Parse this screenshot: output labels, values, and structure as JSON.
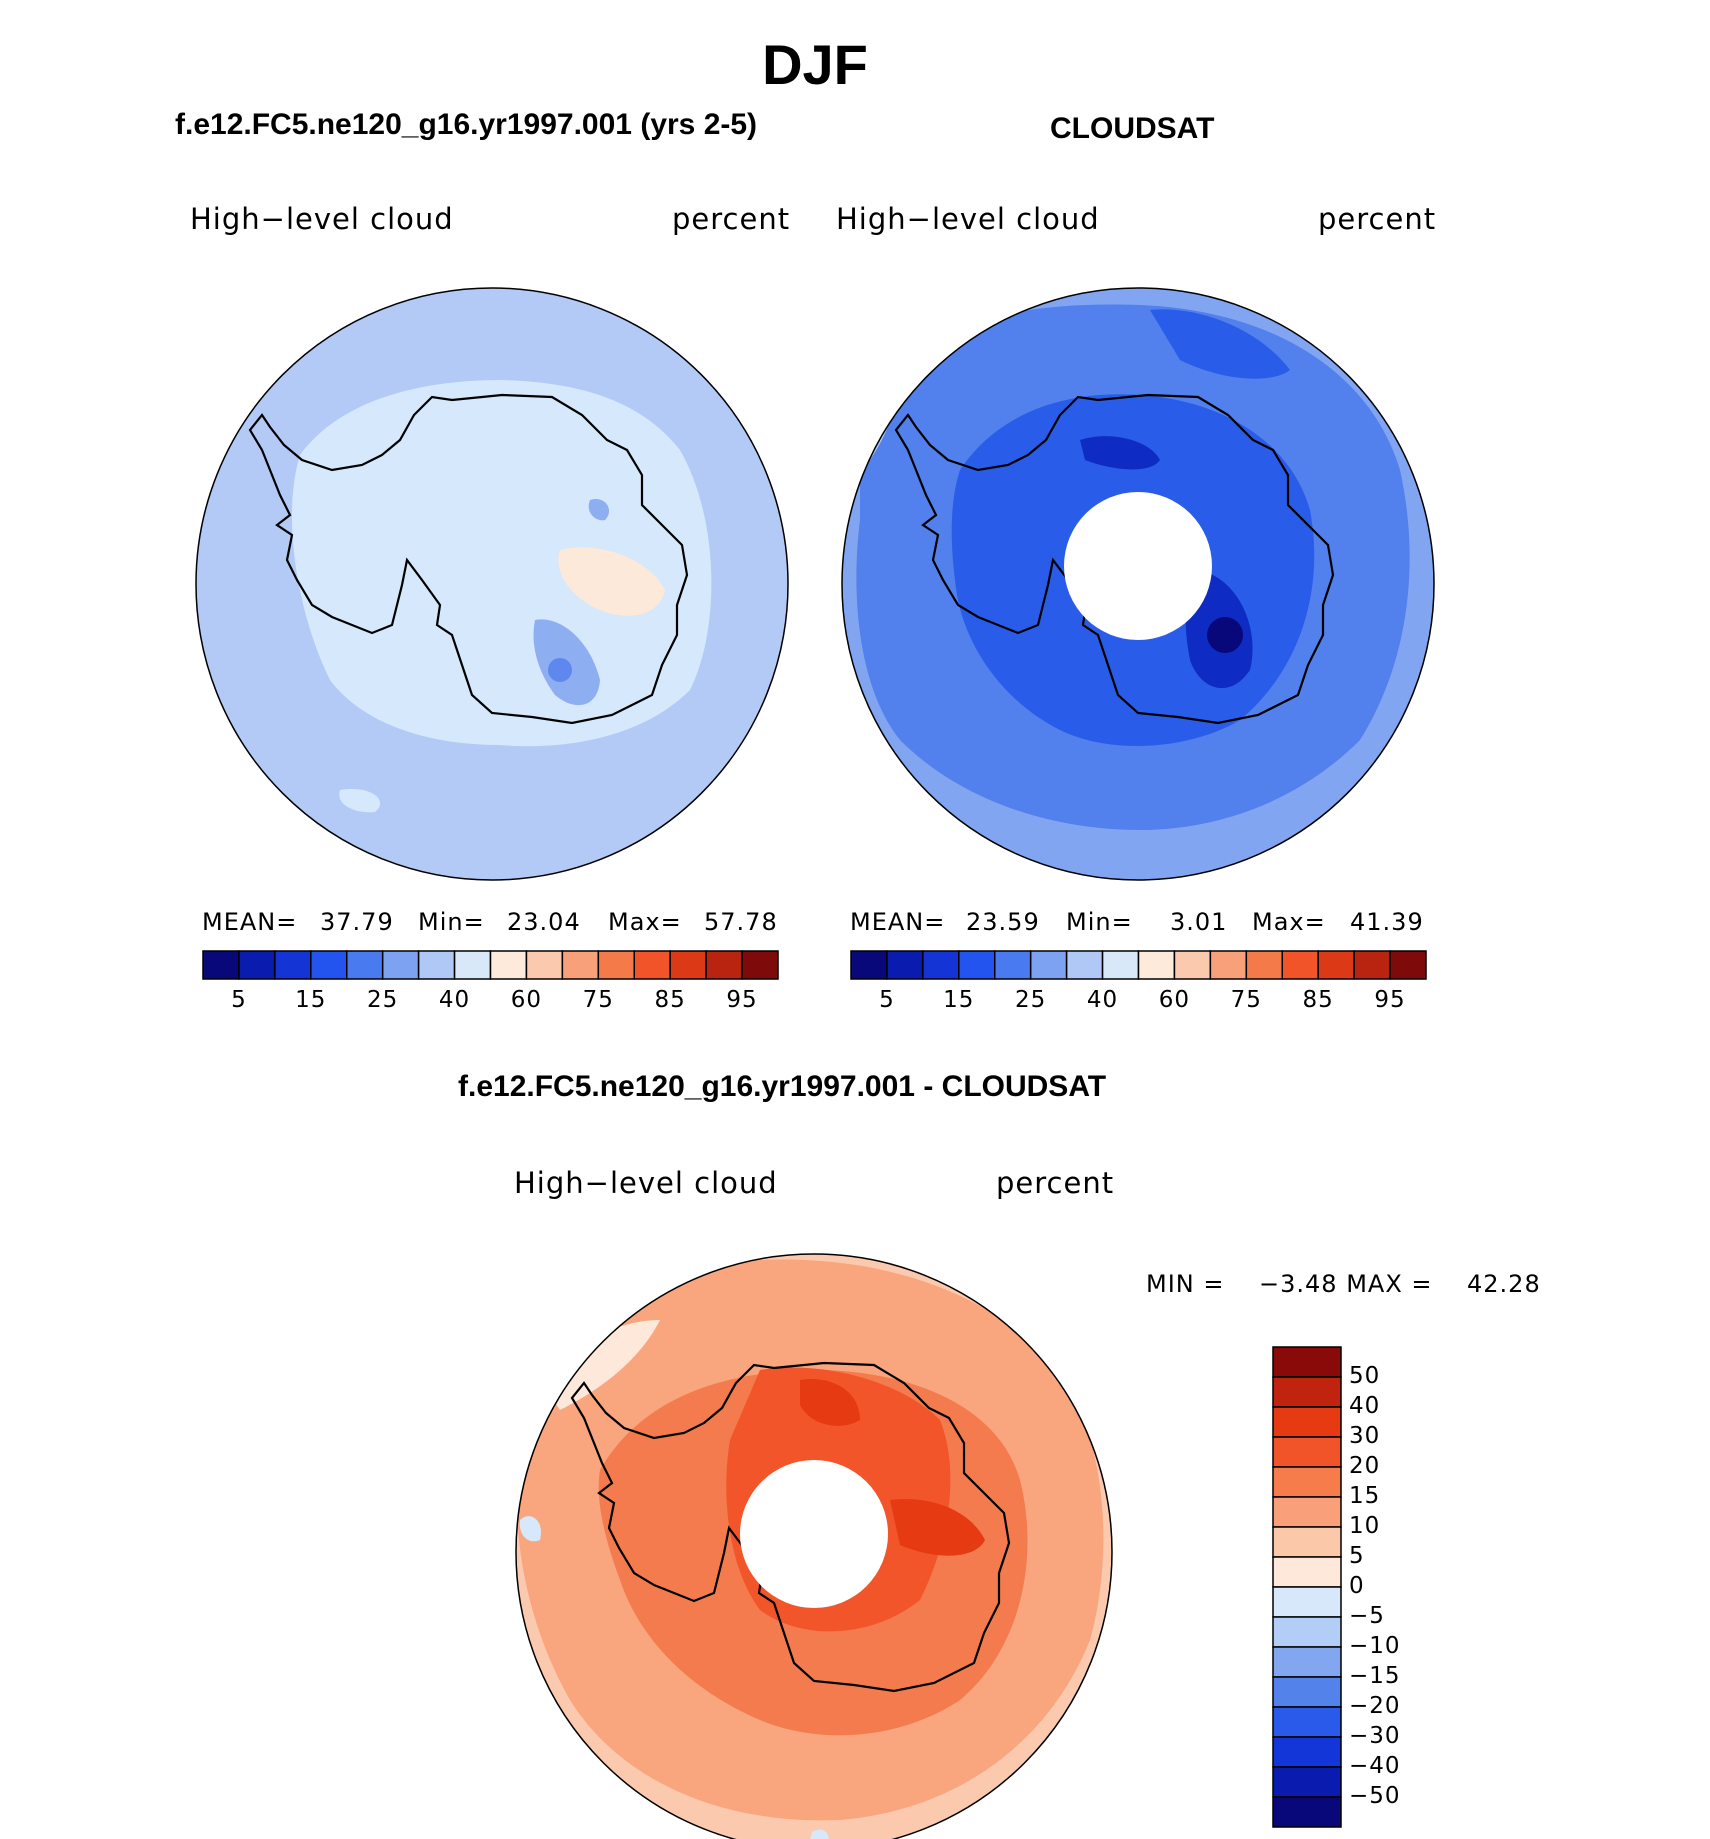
{
  "figure": {
    "title": "DJF",
    "panels": [
      {
        "title": "f.e12.FC5.ne120_g16.yr1997.001 (yrs 2-5)",
        "variable": "High−level cloud",
        "units": "percent",
        "stats": {
          "mean_label": "MEAN=",
          "mean": "37.79",
          "min_label": "Min=",
          "min": "23.04",
          "max_label": "Max=",
          "max": "57.78"
        }
      },
      {
        "title": "CLOUDSAT",
        "variable": "High−level cloud",
        "units": "percent",
        "stats": {
          "mean_label": "MEAN=",
          "mean": "23.59",
          "min_label": "Min=",
          "min": "3.01",
          "max_label": "Max=",
          "max": "41.39"
        }
      }
    ],
    "abs_colorbar": {
      "colors": [
        "#08087a",
        "#0a1cb0",
        "#1434d6",
        "#2454ef",
        "#4a7aef",
        "#7ea2f2",
        "#b0c8f6",
        "#d8e8f8",
        "#fdeada",
        "#fbcaae",
        "#f8a07a",
        "#f47a4a",
        "#f05428",
        "#dc3a16",
        "#b82410",
        "#7e0a0a"
      ],
      "tick_labels": [
        "5",
        "15",
        "25",
        "40",
        "60",
        "75",
        "85",
        "95"
      ]
    },
    "diff": {
      "title": "f.e12.FC5.ne120_g16.yr1997.001 - CLOUDSAT",
      "variable": "High−level cloud",
      "units": "percent",
      "min_label": "MIN =",
      "min": "−3.48",
      "max_label": "MAX =",
      "max": "42.28",
      "colorbar": {
        "colors_top_to_bottom": [
          "#8a0a0a",
          "#c0240e",
          "#e63a12",
          "#f2542a",
          "#f67c4c",
          "#f9a07a",
          "#fbc8aa",
          "#fde8da",
          "#d6e8fa",
          "#b2cef6",
          "#82a6f0",
          "#5282ea",
          "#2a5aea",
          "#1236d8",
          "#0a1cb0",
          "#08087a"
        ],
        "tick_labels": [
          "50",
          "40",
          "30",
          "20",
          "15",
          "10",
          "5",
          "0",
          "−5",
          "−10",
          "−15",
          "−20",
          "−30",
          "−40",
          "−50"
        ]
      }
    },
    "colors": {
      "model_base": "#b3caf7",
      "obs_base": "#82a5f1",
      "diff_base": "#f9ab84"
    }
  }
}
